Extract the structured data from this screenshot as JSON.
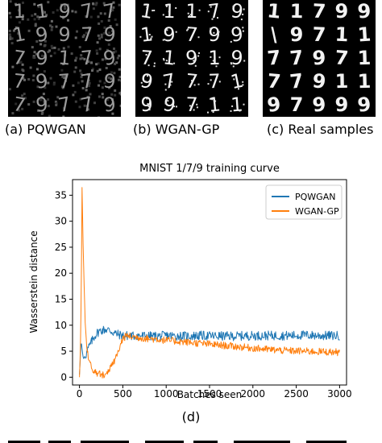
{
  "panels": [
    {
      "caption": "(a) PQWGAN",
      "glyph_rows": [
        "11977",
        "19979",
        "79179",
        "79779",
        "79779"
      ],
      "style": "noisy"
    },
    {
      "caption": "(b) WGAN-GP",
      "glyph_rows": [
        "11179",
        "19799",
        "71919",
        "97771",
        "99711"
      ],
      "style": "speckle"
    },
    {
      "caption": "(c) Real samples",
      "glyph_rows": [
        "11799",
        "\\9711",
        "77971",
        "77911",
        "97999"
      ],
      "style": "clean"
    }
  ],
  "subcaption": "(d)",
  "chart_data": {
    "type": "line",
    "title": "MNIST 1/7/9 training curve",
    "xlabel": "Batches seen",
    "ylabel": "Wasserstein distance",
    "xlim": [
      -80,
      3080
    ],
    "ylim": [
      -1.5,
      38
    ],
    "xticks": [
      0,
      500,
      1000,
      1500,
      2000,
      2500,
      3000
    ],
    "yticks": [
      0,
      5,
      10,
      15,
      20,
      25,
      30,
      35
    ],
    "grid": false,
    "legend_position": "top-right",
    "series": [
      {
        "name": "PQWGAN",
        "color": "#1f77b4",
        "x": [
          0,
          10,
          20,
          30,
          40,
          50,
          60,
          80,
          100,
          130,
          160,
          200,
          250,
          300,
          350,
          400,
          450,
          500,
          550,
          600,
          650,
          700,
          800,
          900,
          1000,
          1200,
          1400,
          1600,
          1800,
          2000,
          2200,
          2400,
          2600,
          2800,
          3000
        ],
        "y": [
          0.5,
          4,
          7,
          5.5,
          4,
          3.5,
          4,
          4.5,
          5.5,
          6.5,
          7.5,
          8.5,
          9,
          9.2,
          9,
          8.5,
          8.2,
          8,
          8,
          7.9,
          8,
          8,
          7.9,
          7.9,
          8,
          7.9,
          8,
          7.9,
          7.9,
          8,
          8,
          8,
          8.1,
          8,
          8
        ],
        "noise": 0.9
      },
      {
        "name": "WGAN-GP",
        "color": "#ff7f0e",
        "x": [
          0,
          10,
          20,
          30,
          40,
          50,
          60,
          70,
          80,
          90,
          100,
          120,
          150,
          200,
          250,
          300,
          350,
          400,
          450,
          480,
          500,
          550,
          600,
          700,
          800,
          900,
          1000,
          1200,
          1400,
          1600,
          1800,
          2000,
          2200,
          2400,
          2600,
          2800,
          3000
        ],
        "y": [
          0,
          5,
          15,
          36.5,
          27,
          20,
          14,
          9,
          7,
          5.5,
          4,
          2.5,
          1.5,
          0.8,
          0.5,
          0.6,
          1.5,
          3,
          5,
          6.5,
          7.5,
          8,
          7.8,
          7.6,
          7.4,
          7.3,
          7.1,
          6.8,
          6.5,
          6.2,
          5.9,
          5.6,
          5.3,
          5.1,
          5,
          4.9,
          4.8
        ],
        "noise": 0.7
      }
    ]
  }
}
